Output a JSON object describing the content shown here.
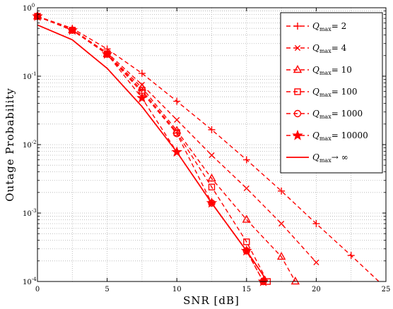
{
  "chart_data": {
    "type": "line",
    "xlabel": "SNR [dB]",
    "ylabel": "Outage Probability",
    "xlim": [
      0,
      25
    ],
    "ylim": [
      0.0001,
      1
    ],
    "yscale": "log",
    "xticks": [
      0,
      5,
      10,
      15,
      20,
      25
    ],
    "yticks": [
      {
        "value": 1,
        "base": "10",
        "exp": "0"
      },
      {
        "value": 0.1,
        "base": "10",
        "exp": "-1"
      },
      {
        "value": 0.01,
        "base": "10",
        "exp": "-2"
      },
      {
        "value": 0.001,
        "base": "10",
        "exp": "-3"
      },
      {
        "value": 0.0001,
        "base": "10",
        "exp": "-4"
      }
    ],
    "grid": true,
    "legend_position": "top-right",
    "color": "#ff0000",
    "series": [
      {
        "label_main": "Q",
        "label_sub": "max",
        "label_tail": "= 2",
        "marker": "plus",
        "line": "dashed",
        "x": [
          0,
          2.5,
          5,
          7.5,
          10,
          12.5,
          15,
          17.5,
          20,
          22.5,
          25
        ],
        "y": [
          0.75,
          0.5,
          0.25,
          0.11,
          0.043,
          0.0165,
          0.006,
          0.0021,
          0.0007,
          0.00024,
          8e-05
        ]
      },
      {
        "label_main": "Q",
        "label_sub": "max",
        "label_tail": "= 4",
        "marker": "x",
        "line": "dashed",
        "x": [
          0,
          2.5,
          5,
          7.5,
          10,
          12.5,
          15,
          17.5,
          20
        ],
        "y": [
          0.75,
          0.48,
          0.22,
          0.075,
          0.023,
          0.007,
          0.0023,
          0.0007,
          0.00019
        ]
      },
      {
        "label_main": "Q",
        "label_sub": "max",
        "label_tail": "= 10",
        "marker": "triangle",
        "line": "dashed",
        "x": [
          0,
          2.5,
          5,
          7.5,
          10,
          12.5,
          15,
          17.5,
          18.5
        ],
        "y": [
          0.75,
          0.47,
          0.21,
          0.068,
          0.016,
          0.0032,
          0.0008,
          0.00023,
          0.0001
        ]
      },
      {
        "label_main": "Q",
        "label_sub": "max",
        "label_tail": "= 100",
        "marker": "square",
        "line": "dashed",
        "x": [
          0,
          2.5,
          5,
          7.5,
          10,
          12.5,
          15,
          16.5
        ],
        "y": [
          0.75,
          0.47,
          0.21,
          0.062,
          0.015,
          0.0024,
          0.00038,
          0.0001
        ]
      },
      {
        "label_main": "Q",
        "label_sub": "max",
        "label_tail": "= 1000",
        "marker": "circle",
        "line": "dashed",
        "x": [
          0,
          2.5,
          5,
          7.5,
          10,
          12.5,
          15,
          16.2
        ],
        "y": [
          0.75,
          0.47,
          0.21,
          0.058,
          0.0145,
          0.0014,
          0.00028,
          0.0001
        ]
      },
      {
        "label_main": "Q",
        "label_sub": "max",
        "label_tail": "= 10000",
        "marker": "star",
        "line": "dashed",
        "x": [
          0,
          2.5,
          5,
          7.5,
          10,
          12.5,
          15,
          16.2
        ],
        "y": [
          0.75,
          0.47,
          0.21,
          0.048,
          0.0078,
          0.0014,
          0.00028,
          0.0001
        ]
      },
      {
        "label_main": "Q",
        "label_sub": "max",
        "label_tail": "→ ∞",
        "marker": "none",
        "line": "solid",
        "x": [
          0,
          2.5,
          5,
          7.5,
          10,
          12.5,
          15,
          16.5
        ],
        "y": [
          0.56,
          0.34,
          0.13,
          0.036,
          0.0078,
          0.0014,
          0.00028,
          0.0001
        ]
      }
    ]
  }
}
